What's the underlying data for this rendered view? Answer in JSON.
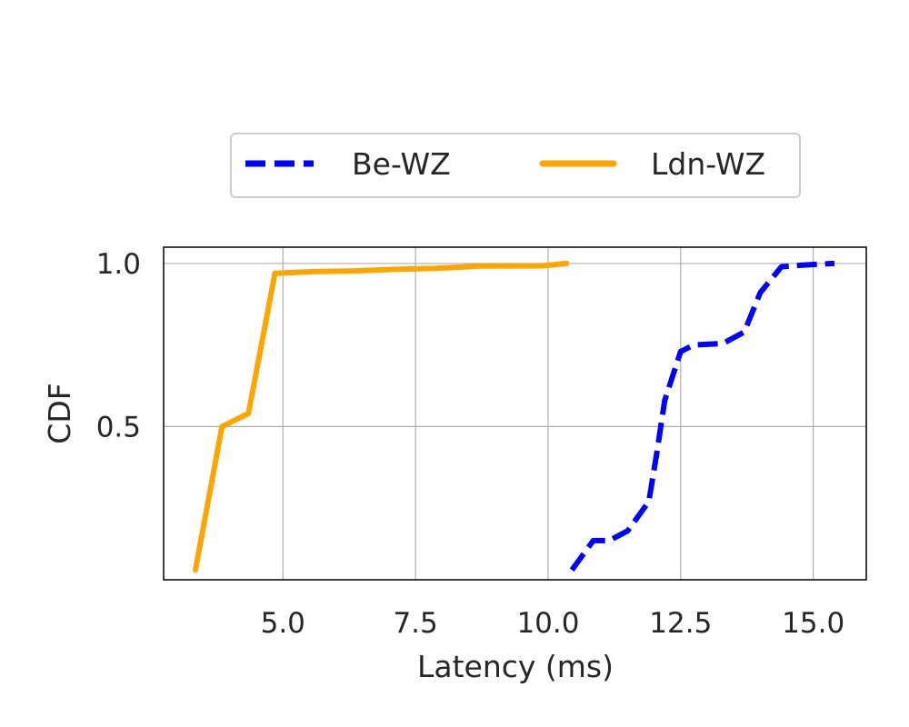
{
  "chart_data": {
    "type": "line",
    "xlabel": "Latency (ms)",
    "ylabel": "CDF",
    "xlim": [
      2.75,
      16.0
    ],
    "ylim": [
      0.03,
      1.05
    ],
    "xticks": [
      "5.0",
      "7.5",
      "10.0",
      "12.5",
      "15.0"
    ],
    "yticks": [
      "0.5",
      "1.0"
    ],
    "grid": true,
    "legend_position": "top-center",
    "series": [
      {
        "name": "Be-WZ",
        "color": "#0000ff",
        "linestyle": "dashed",
        "x": [
          10.45,
          10.85,
          11.15,
          11.5,
          11.9,
          12.05,
          12.2,
          12.5,
          12.75,
          13.3,
          13.7,
          14.0,
          14.4,
          14.8,
          15.4
        ],
        "y": [
          0.06,
          0.15,
          0.15,
          0.18,
          0.27,
          0.42,
          0.58,
          0.73,
          0.75,
          0.755,
          0.79,
          0.91,
          0.99,
          0.995,
          1.0
        ]
      },
      {
        "name": "Ldn-WZ",
        "color": "#ffa500",
        "linestyle": "solid",
        "x": [
          3.35,
          3.85,
          4.35,
          4.85,
          5.6,
          6.3,
          7.1,
          7.9,
          8.7,
          9.9,
          10.35
        ],
        "y": [
          0.06,
          0.5,
          0.54,
          0.97,
          0.975,
          0.977,
          0.982,
          0.985,
          0.992,
          0.993,
          1.0
        ]
      }
    ]
  }
}
